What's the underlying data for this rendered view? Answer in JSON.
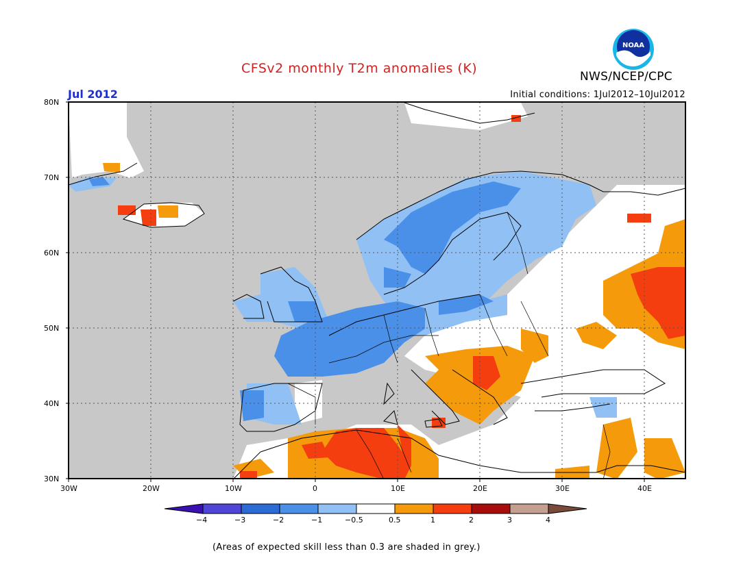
{
  "title": "CFSv2 monthly T2m anomalies (K)",
  "month": "Jul 2012",
  "initial_conditions": "Initial conditions: 1Jul2012–10Jul2012",
  "agency": "NWS/NCEP/CPC",
  "logo_text": "NOAA",
  "note": "(Areas of expected skill less than 0.3 are shaded in grey.)",
  "lat_labels": [
    "80N",
    "70N",
    "60N",
    "50N",
    "40N",
    "30N"
  ],
  "lon_labels": [
    "30W",
    "20W",
    "10W",
    "0",
    "10E",
    "20E",
    "30E",
    "40E"
  ],
  "colorbar": {
    "labels": [
      "−4",
      "−3",
      "−2",
      "−1",
      "−0.5",
      "0.5",
      "1",
      "2",
      "3",
      "4"
    ],
    "colors": [
      "#3a10b0",
      "#4f46d8",
      "#2c6ad6",
      "#4a90e8",
      "#90c0f4",
      "#ffffff",
      "#f59a0a",
      "#f43e10",
      "#a80d0d",
      "#c4a090",
      "#7a4a3a"
    ]
  },
  "colors": {
    "skill_grey": "#c8c8c8",
    "title_red": "#d42020",
    "month_blue": "#2030c8"
  },
  "chart_data": {
    "type": "heatmap",
    "title": "CFSv2 monthly T2m anomalies (K)",
    "valid_month": "Jul 2012",
    "domain": {
      "lon": [
        -30,
        45
      ],
      "lat": [
        30,
        80
      ]
    },
    "levels": [
      -4,
      -3,
      -2,
      -1,
      -0.5,
      0.5,
      1,
      2,
      3,
      4
    ],
    "regions": [
      {
        "name": "France / Benelux / Germany",
        "class": "-2 to -1"
      },
      {
        "name": "British Isles",
        "class": "-2 to -0.5"
      },
      {
        "name": "Scandinavia",
        "class": "-2 to -0.5"
      },
      {
        "name": "Iberian west coast",
        "class": "-2 to -0.5"
      },
      {
        "name": "Western Russia",
        "class": "1 to 2"
      },
      {
        "name": "Balkans",
        "class": "1 to 2"
      },
      {
        "name": "Algeria / Tunisia",
        "class": "1 to 2"
      },
      {
        "name": "Central Russia / Ukraine",
        "class": "0.5 to 1"
      },
      {
        "name": "Eastern Europe",
        "class": "-0.5 to 0.5"
      },
      {
        "name": "Ocean and low-skill areas",
        "class": "grey (skill < 0.3)"
      }
    ]
  }
}
